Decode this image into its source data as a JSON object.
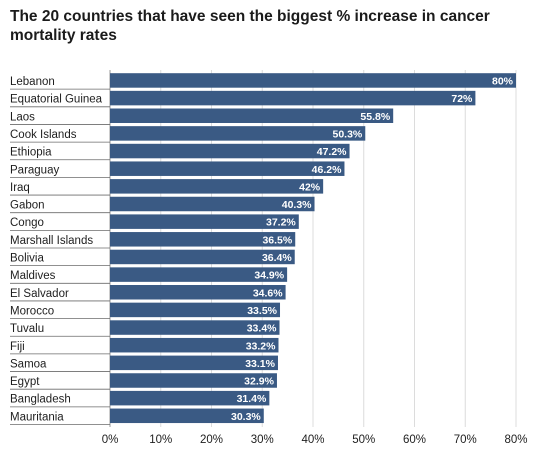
{
  "chart_data": {
    "type": "bar",
    "orientation": "horizontal",
    "title": "The 20 countries that have seen the biggest % increase in cancer mortality rates",
    "xlabel": "",
    "ylabel": "",
    "xlim": [
      0,
      80
    ],
    "value_suffix": "%",
    "grid": true,
    "legend": "none",
    "bar_color": "#3a5a84",
    "ticks": [
      "0%",
      "10%",
      "20%",
      "30%",
      "40%",
      "50%",
      "60%",
      "70%",
      "80%"
    ],
    "categories": [
      "Lebanon",
      "Equatorial Guinea",
      "Laos",
      "Cook Islands",
      "Ethiopia",
      "Paraguay",
      "Iraq",
      "Gabon",
      "Congo",
      "Marshall Islands",
      "Bolivia",
      "Maldives",
      "El Salvador",
      "Morocco",
      "Tuvalu",
      "Fiji",
      "Samoa",
      "Egypt",
      "Bangladesh",
      "Mauritania"
    ],
    "values": [
      80,
      72,
      55.8,
      50.3,
      47.2,
      46.2,
      42,
      40.3,
      37.2,
      36.5,
      36.4,
      34.9,
      34.6,
      33.5,
      33.4,
      33.2,
      33.1,
      32.9,
      31.4,
      30.3
    ],
    "value_labels": [
      "80%",
      "72%",
      "55.8%",
      "50.3%",
      "47.2%",
      "46.2%",
      "42%",
      "40.3%",
      "37.2%",
      "36.5%",
      "36.4%",
      "34.9%",
      "34.6%",
      "33.5%",
      "33.4%",
      "33.2%",
      "33.1%",
      "32.9%",
      "31.4%",
      "30.3%"
    ]
  }
}
